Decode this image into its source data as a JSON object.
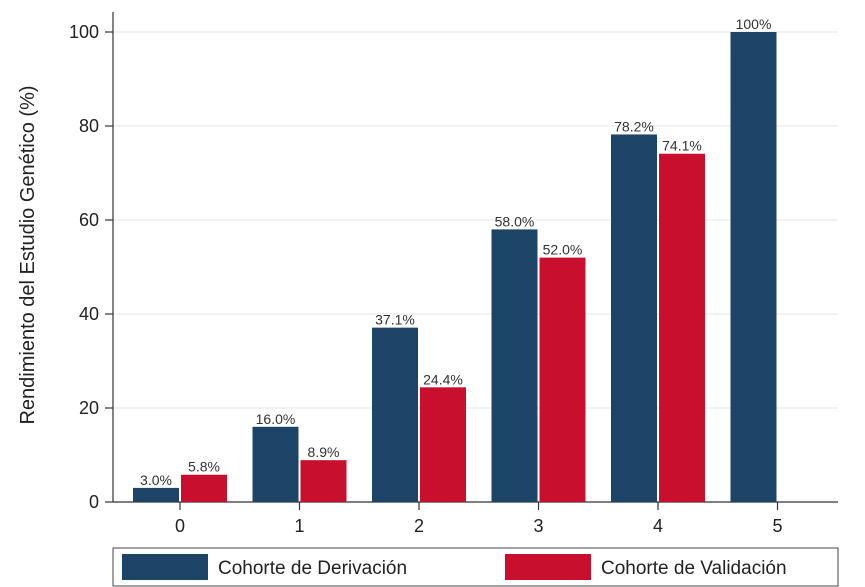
{
  "chart_data": {
    "type": "bar",
    "ylabel": "Rendimiento del Estudio Genético (%)",
    "xlabel": "",
    "categories": [
      "0",
      "1",
      "2",
      "3",
      "4",
      "5"
    ],
    "ylim": [
      0,
      100
    ],
    "yticks": [
      0,
      20,
      40,
      60,
      80,
      100
    ],
    "grid": true,
    "legend_position": "bottom",
    "series": [
      {
        "name": "Cohorte de Derivación",
        "color": "#1c4466",
        "values": [
          3.0,
          16.0,
          37.1,
          58.0,
          78.2,
          100
        ],
        "labels": [
          "3.0%",
          "16.0%",
          "37.1%",
          "58.0%",
          "78.2%",
          "100%"
        ]
      },
      {
        "name": "Cohorte de Validación",
        "color": "#c8102e",
        "values": [
          5.8,
          8.9,
          24.4,
          52.0,
          74.1,
          null
        ],
        "labels": [
          "5.8%",
          "8.9%",
          "24.4%",
          "52.0%",
          "74.1%",
          ""
        ]
      }
    ]
  }
}
